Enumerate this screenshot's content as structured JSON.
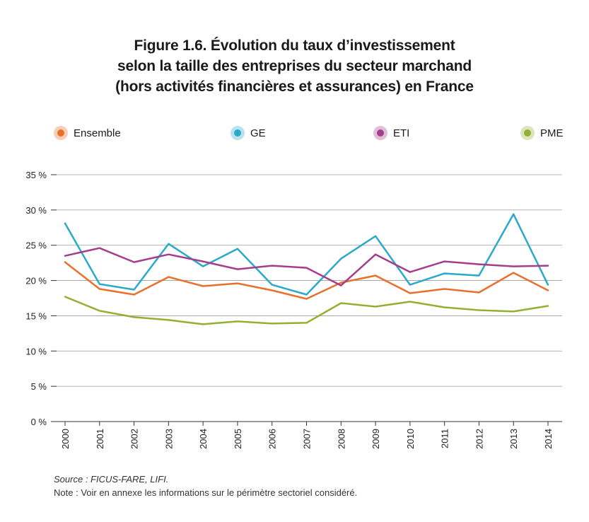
{
  "figure": {
    "title_lines": [
      "Figure 1.6. Évolution du taux d’investissement",
      "selon la taille des entreprises du secteur marchand",
      "(hors activités financières et assurances) en France"
    ],
    "source_label": "Source",
    "source_text": "FICUS-FARE, LIFI.",
    "note_label": "Note",
    "note_text": "Voir en annexe les informations sur le périmètre sectoriel considéré."
  },
  "chart_data": {
    "type": "line",
    "title": "Figure 1.6. Évolution du taux d’investissement selon la taille des entreprises du secteur marchand (hors activités financières et assurances) en France",
    "x": [
      "2000",
      "2001",
      "2002",
      "2003",
      "2004",
      "2005",
      "2006",
      "2007",
      "2008",
      "2009",
      "2010",
      "2011",
      "2012",
      "2013",
      "2014"
    ],
    "ylim": [
      0,
      35
    ],
    "yticks": [
      0,
      5,
      10,
      15,
      20,
      25,
      30,
      35
    ],
    "ytick_labels": [
      "0 %",
      "5 %",
      "10 %",
      "15 %",
      "20 %",
      "25 %",
      "30 %",
      "35 %"
    ],
    "grid": true,
    "legend_position": "top",
    "series": [
      {
        "name": "Ensemble",
        "color": "#e8702a",
        "values": [
          22.6,
          18.8,
          18.0,
          20.5,
          19.2,
          19.6,
          18.6,
          17.4,
          19.7,
          20.7,
          18.2,
          18.8,
          18.3,
          21.1,
          18.6
        ]
      },
      {
        "name": "GE",
        "color": "#2aa9c9",
        "values": [
          28.1,
          19.5,
          18.7,
          25.2,
          22.0,
          24.5,
          19.4,
          18.0,
          23.1,
          26.3,
          19.4,
          21.0,
          20.7,
          29.4,
          19.4
        ]
      },
      {
        "name": "ETI",
        "color": "#a63d8b",
        "values": [
          23.5,
          24.6,
          22.6,
          23.7,
          22.7,
          21.6,
          22.1,
          21.8,
          19.3,
          23.7,
          21.2,
          22.7,
          22.3,
          22.0,
          22.1
        ]
      },
      {
        "name": "PME",
        "color": "#93b033",
        "values": [
          17.7,
          15.7,
          14.8,
          14.4,
          13.8,
          14.2,
          13.9,
          14.0,
          16.8,
          16.3,
          17.0,
          16.2,
          15.8,
          15.6,
          16.4
        ]
      }
    ]
  }
}
